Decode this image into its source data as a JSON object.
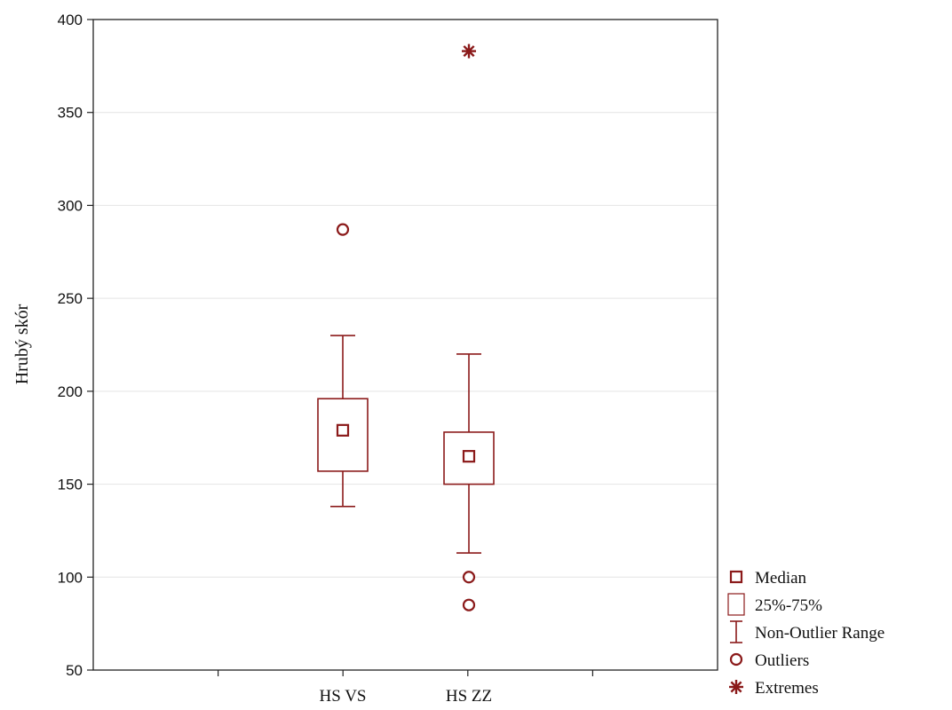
{
  "chart_data": {
    "type": "boxplot",
    "title": "",
    "ylabel": "Hrubý skór",
    "xlabel": "",
    "ylim": [
      50,
      400
    ],
    "yticks": [
      50,
      100,
      150,
      200,
      250,
      300,
      350,
      400
    ],
    "grid": true,
    "legend_position": "right-bottom",
    "color": "#8b1a1a",
    "categories": [
      "HS VS",
      "HS ZZ"
    ],
    "boxes": [
      {
        "category": "HS VS",
        "median": 179,
        "q1": 157,
        "q3": 196,
        "whisker_low": 138,
        "whisker_high": 230,
        "outliers": [
          287
        ],
        "extremes": []
      },
      {
        "category": "HS ZZ",
        "median": 165,
        "q1": 150,
        "q3": 178,
        "whisker_low": 113,
        "whisker_high": 220,
        "outliers": [
          100,
          85
        ],
        "extremes": [
          383
        ]
      }
    ],
    "legend": [
      {
        "symbol": "median",
        "label": "Median"
      },
      {
        "symbol": "box",
        "label": "25%-75%"
      },
      {
        "symbol": "range",
        "label": "Non-Outlier Range"
      },
      {
        "symbol": "outlier",
        "label": "Outliers"
      },
      {
        "symbol": "extreme",
        "label": "Extremes"
      }
    ]
  }
}
